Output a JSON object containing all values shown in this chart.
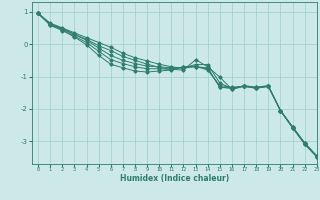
{
  "title": "",
  "xlabel": "Humidex (Indice chaleur)",
  "bg_color": "#cce8e8",
  "grid_color": "#9fcfcf",
  "line_color": "#2e7d6e",
  "xlim": [
    -0.5,
    23
  ],
  "ylim": [
    -3.7,
    1.3
  ],
  "xticks": [
    0,
    1,
    2,
    3,
    4,
    5,
    6,
    7,
    8,
    9,
    10,
    11,
    12,
    13,
    14,
    15,
    16,
    17,
    18,
    19,
    20,
    21,
    22,
    23
  ],
  "yticks": [
    -3,
    -2,
    -1,
    0,
    1
  ],
  "lines": [
    [
      0.95,
      0.65,
      0.5,
      0.35,
      0.2,
      0.05,
      -0.1,
      -0.28,
      -0.42,
      -0.52,
      -0.62,
      -0.7,
      -0.75,
      -0.68,
      -0.8,
      -1.28,
      -1.33,
      -1.3,
      -1.33,
      -1.3,
      -2.05,
      -2.58,
      -3.08,
      -3.48
    ],
    [
      0.95,
      0.62,
      0.48,
      0.3,
      0.15,
      -0.05,
      -0.2,
      -0.38,
      -0.5,
      -0.62,
      -0.72,
      -0.78,
      -0.8,
      -0.48,
      -0.7,
      -1.02,
      -1.4,
      -1.3,
      -1.36,
      -1.3,
      -2.05,
      -2.55,
      -3.05,
      -3.45
    ],
    [
      0.95,
      0.62,
      0.48,
      0.3,
      0.12,
      -0.12,
      -0.35,
      -0.5,
      -0.6,
      -0.68,
      -0.7,
      -0.73,
      -0.73,
      -0.63,
      -0.63,
      -1.2,
      -1.38,
      -1.28,
      -1.33,
      -1.28,
      -2.05,
      -2.55,
      -3.05,
      -3.45
    ],
    [
      0.95,
      0.6,
      0.45,
      0.25,
      0.05,
      -0.22,
      -0.48,
      -0.6,
      -0.7,
      -0.76,
      -0.76,
      -0.78,
      -0.7,
      -0.7,
      -0.76,
      -1.33,
      -1.36,
      -1.3,
      -1.36,
      -1.3,
      -2.05,
      -2.58,
      -3.08,
      -3.48
    ],
    [
      0.95,
      0.58,
      0.42,
      0.22,
      -0.02,
      -0.35,
      -0.62,
      -0.73,
      -0.83,
      -0.86,
      -0.83,
      -0.8,
      -0.7,
      -0.7,
      -0.73,
      -1.33,
      -1.36,
      -1.3,
      -1.36,
      -1.3,
      -2.05,
      -2.58,
      -3.08,
      -3.48
    ]
  ]
}
